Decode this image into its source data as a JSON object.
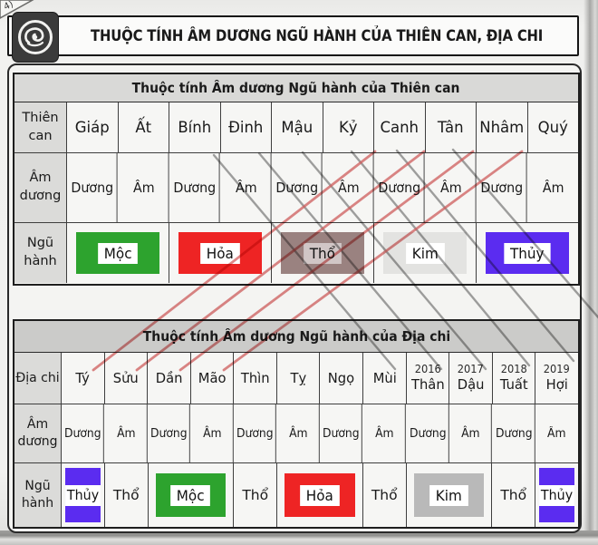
{
  "page": {
    "corner_mark": "4)",
    "banner_title": "THUỘC TÍNH ÂM DƯƠNG NGŨ HÀNH CỦA THIÊN CAN, ĐỊA CHI",
    "logo_icon": "dragon-seal-icon"
  },
  "thien_can_table": {
    "title": "Thuộc tính Âm dương Ngũ hành của Thiên can",
    "row_headers": {
      "r1": "Thiên can",
      "r2": "Âm dương",
      "r3": "Ngũ hành"
    },
    "cans": [
      "Giáp",
      "Ất",
      "Bính",
      "Đinh",
      "Mậu",
      "Kỷ",
      "Canh",
      "Tân",
      "Nhâm",
      "Quý"
    ],
    "am_duong": [
      "Dương",
      "Âm",
      "Dương",
      "Âm",
      "Dương",
      "Âm",
      "Dương",
      "Âm",
      "Dương",
      "Âm"
    ],
    "ngu_hanh": [
      {
        "label": "Mộc",
        "color": "#2da32e",
        "span": 2,
        "block": true
      },
      {
        "label": "Hỏa",
        "color": "#ee2424",
        "span": 2,
        "block": true
      },
      {
        "label": "Thổ",
        "color": "#9a8280",
        "span": 2,
        "block": true,
        "faint": true
      },
      {
        "label": "Kim",
        "color": "#e3e3e1",
        "span": 2,
        "block": true
      },
      {
        "label": "Thủy",
        "color": "#5b2cf0",
        "span": 2,
        "block": true
      }
    ]
  },
  "dia_chi_table": {
    "title": "Thuộc tính Âm dương Ngũ hành của Địa chi",
    "row_headers": {
      "r1": "Địa chi",
      "r2": "Âm dương",
      "r3": "Ngũ hành"
    },
    "chis": [
      {
        "name": "Tý"
      },
      {
        "name": "Sửu"
      },
      {
        "name": "Dần"
      },
      {
        "name": "Mão"
      },
      {
        "name": "Thìn"
      },
      {
        "name": "Tỵ"
      },
      {
        "name": "Ngọ"
      },
      {
        "name": "Mùi"
      },
      {
        "name": "Thân",
        "year": "2016"
      },
      {
        "name": "Dậu",
        "year": "2017"
      },
      {
        "name": "Tuất",
        "year": "2018"
      },
      {
        "name": "Hợi",
        "year": "2019"
      }
    ],
    "am_duong": [
      "Dương",
      "Âm",
      "Dương",
      "Âm",
      "Dương",
      "Âm",
      "Dương",
      "Âm",
      "Dương",
      "Âm",
      "Dương",
      "Âm"
    ],
    "ngu_hanh": [
      {
        "label": "Thủy",
        "color": "#5b2cf0",
        "span": 1,
        "block": true
      },
      {
        "label": "Thổ",
        "span": 1,
        "block": false
      },
      {
        "label": "Mộc",
        "color": "#2da32e",
        "span": 2,
        "block": true
      },
      {
        "label": "Thổ",
        "span": 1,
        "block": false
      },
      {
        "label": "Hỏa",
        "color": "#ee2424",
        "span": 2,
        "block": true
      },
      {
        "label": "Thổ",
        "span": 1,
        "block": false
      },
      {
        "label": "Kim",
        "color": "#b9b9b9",
        "span": 2,
        "block": true
      },
      {
        "label": "Thổ",
        "span": 1,
        "block": false
      },
      {
        "label": "Thủy",
        "color": "#5b2cf0",
        "span": 1,
        "block": true
      }
    ]
  },
  "annotations": {
    "red_color": "#d56060",
    "gray_color": "#8c8c8c",
    "red_lines": [
      [
        414,
        167,
        103,
        408
      ],
      [
        468,
        167,
        151,
        408
      ],
      [
        522,
        167,
        199,
        408
      ],
      [
        576,
        167,
        247,
        408
      ]
    ],
    "gray_lines": [
      [
        236,
        171,
        436,
        407
      ],
      [
        286,
        169,
        487,
        407
      ],
      [
        334,
        168,
        536,
        407
      ],
      [
        388,
        167,
        584,
        403
      ],
      [
        438,
        166,
        633,
        398
      ],
      [
        500,
        165,
        662,
        352
      ]
    ]
  }
}
